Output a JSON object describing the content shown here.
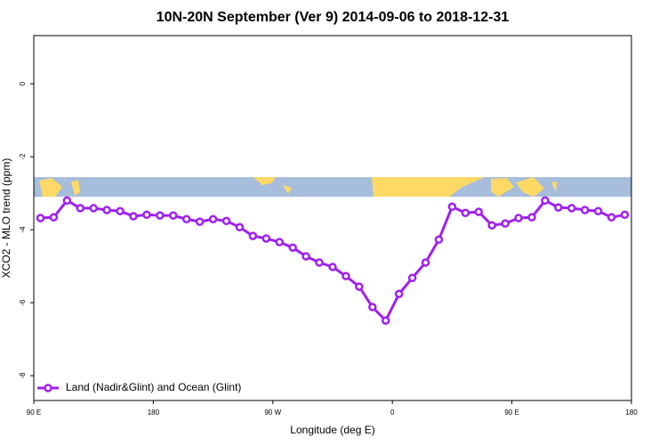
{
  "chart_data": {
    "type": "line",
    "title": "10N-20N September (Ver 9)   2014-09-06 to 2018-12-31",
    "xlabel": "Longitude (deg E)",
    "ylabel": "XCO2 - MLO trend (ppm)",
    "x": [
      95,
      105,
      115,
      125,
      135,
      145,
      155,
      165,
      175,
      185,
      195,
      205,
      215,
      225,
      235,
      245,
      255,
      265,
      275,
      285,
      295,
      305,
      315,
      325,
      335,
      345,
      355,
      365,
      375,
      385,
      395,
      405,
      415,
      425,
      435,
      445,
      455,
      465,
      475,
      485,
      495,
      505,
      515,
      525,
      535
    ],
    "series": [
      {
        "name": "Land (Nadir&Glint) and Ocean (Glint)",
        "color": "#a020f0",
        "values": [
          -3.68,
          -3.66,
          -3.2,
          -3.41,
          -3.41,
          -3.46,
          -3.49,
          -3.63,
          -3.59,
          -3.61,
          -3.61,
          -3.71,
          -3.78,
          -3.71,
          -3.76,
          -3.93,
          -4.17,
          -4.24,
          -4.34,
          -4.49,
          -4.73,
          -4.9,
          -5.02,
          -5.27,
          -5.56,
          -6.12,
          -6.49,
          -5.76,
          -5.32,
          -4.9,
          -4.27,
          -3.37,
          -3.54,
          -3.51,
          -3.88,
          -3.83,
          -3.68,
          -3.66,
          -3.2,
          -3.39,
          -3.41,
          -3.46,
          -3.49,
          -3.66,
          -3.59
        ]
      }
    ],
    "xlim": [
      90,
      540
    ],
    "xticks": [
      {
        "value": 90,
        "label": "90 E"
      },
      180,
      {
        "value": 270,
        "label": "90 W"
      },
      {
        "value": 360,
        "label": "0"
      },
      {
        "value": 450,
        "label": "90 E"
      },
      {
        "value": 540,
        "label": "180"
      }
    ],
    "ylim": [
      -8.68,
      1.32
    ],
    "yticks": [
      0,
      -2,
      -4,
      -6,
      -8
    ],
    "legend": "bottom-left"
  }
}
